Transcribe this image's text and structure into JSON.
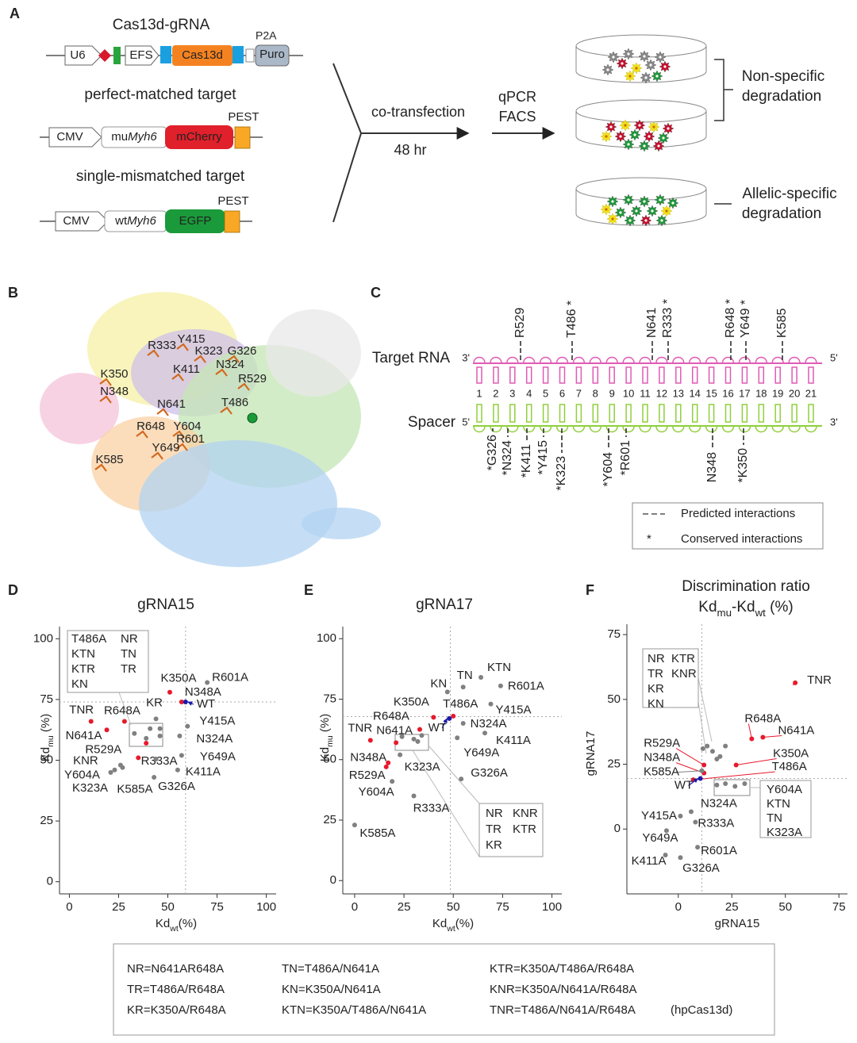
{
  "panel_a": {
    "letter": "A",
    "constructs": [
      {
        "title": "Cas13d-gRNA",
        "promoter": "U6",
        "promoter2": "EFS",
        "gene": "Cas13d",
        "linker": "P2A",
        "marker": "Puro"
      },
      {
        "title": "perfect-matched target",
        "promoter": "CMV",
        "target_prefix": "mu",
        "target_gene": "Myh6",
        "reporter": "mCherry",
        "tag": "PEST"
      },
      {
        "title": "single-mismatched target",
        "promoter": "CMV",
        "target_prefix": "wt",
        "target_gene": "Myh6",
        "reporter": "EGFP",
        "tag": "PEST"
      }
    ],
    "step": "co-transfection",
    "step_time": "48 hr",
    "assay": [
      "qPCR",
      "FACS"
    ],
    "outcome1": [
      "Non-specific",
      "degradation"
    ],
    "outcome2": [
      "Allelic-specific",
      "degradation"
    ]
  },
  "panel_b": {
    "letter": "B",
    "residues": [
      "Y415",
      "R333",
      "K323",
      "G326",
      "K411",
      "N324",
      "K350",
      "R529",
      "N348",
      "N641",
      "T486",
      "R648",
      "Y604",
      "R601",
      "Y649",
      "K585"
    ]
  },
  "panel_c": {
    "letter": "C",
    "target_label": "Target RNA",
    "target_ends": [
      "3'",
      "5'"
    ],
    "spacer_label": "Spacer",
    "spacer_ends": [
      "5'",
      "3'"
    ],
    "positions": [
      1,
      2,
      3,
      4,
      5,
      6,
      7,
      8,
      9,
      10,
      11,
      12,
      13,
      14,
      15,
      16,
      17,
      18,
      19,
      20,
      21
    ],
    "top_residues": [
      "R529",
      "T486 *",
      "N641",
      "R333 *",
      "R648 *",
      "Y649 *",
      "K585"
    ],
    "bottom_residues": [
      "*G326",
      "*N324",
      "*K411",
      "*Y415",
      "*K323",
      "*Y604",
      "*R601",
      "N348",
      "*K350"
    ],
    "legend": {
      "dash_label": "Predicted  interactions",
      "star": "*",
      "star_label": "Conserved interactions"
    }
  },
  "chart_data": [
    {
      "type": "scatter",
      "panel": "D",
      "title": "gRNA15",
      "xlabel": [
        {
          "text": "Kd"
        },
        {
          "text": "wt",
          "sub": true
        },
        {
          "text": "(%)"
        }
      ],
      "ylabel": [
        {
          "text": "Kd"
        },
        {
          "text": "mu",
          "sub": true
        },
        {
          "text": " (%)"
        }
      ],
      "xlim": [
        -5,
        105
      ],
      "ylim": [
        -5,
        105
      ],
      "xticks": [
        0,
        25,
        50,
        75,
        100
      ],
      "yticks": [
        0,
        25,
        50,
        75,
        100
      ],
      "vline": 59,
      "hline": 74,
      "points": [
        {
          "label": "K350A",
          "x": 51,
          "y": 78,
          "color": "#e8192c"
        },
        {
          "label": "N348A",
          "x": 57,
          "y": 74,
          "color": "#e8192c"
        },
        {
          "label": "WT",
          "x": 59,
          "y": 74,
          "color": "#1a1aa8"
        },
        {
          "label": "R601A",
          "x": 70,
          "y": 82,
          "color": "#808080"
        },
        {
          "label": "TNR",
          "x": 11,
          "y": 66,
          "color": "#e8192c"
        },
        {
          "label": "R648A",
          "x": 28,
          "y": 66,
          "color": "#e8192c"
        },
        {
          "label": "KR",
          "x": 44,
          "y": 67,
          "color": "#808080"
        },
        {
          "label": "N641A",
          "x": 19,
          "y": 62.5,
          "color": "#e8192c"
        },
        {
          "label": "Y415A",
          "x": 60,
          "y": 64,
          "color": "#808080"
        },
        {
          "label": "N324A",
          "x": 56,
          "y": 60,
          "color": "#808080"
        },
        {
          "label": "R529A",
          "x": 35,
          "y": 51,
          "color": "#e8192c"
        },
        {
          "label": "R333A",
          "x": 44,
          "y": 50.5,
          "color": "#808080"
        },
        {
          "label": "Y649A",
          "x": 57,
          "y": 52,
          "color": "#808080"
        },
        {
          "label": "K411A",
          "x": 55,
          "y": 46,
          "color": "#808080"
        },
        {
          "label": "G326A",
          "x": 43,
          "y": 43,
          "color": "#808080"
        },
        {
          "label": "K585A",
          "x": 27,
          "y": 47,
          "color": "#808080"
        },
        {
          "label": "KNR",
          "x": 26,
          "y": 48,
          "color": "#808080"
        },
        {
          "label": "Y604A",
          "x": 23,
          "y": 46,
          "color": "#808080"
        },
        {
          "label": "K323A",
          "x": 21,
          "y": 45,
          "color": "#808080"
        },
        {
          "x": 39,
          "y": 57,
          "color": "#e8192c"
        },
        {
          "x": 33,
          "y": 61,
          "color": "#808080"
        },
        {
          "x": 41,
          "y": 63,
          "color": "#808080"
        },
        {
          "x": 46,
          "y": 63,
          "color": "#808080"
        },
        {
          "x": 39,
          "y": 59,
          "color": "#808080"
        },
        {
          "x": 46,
          "y": 60,
          "color": "#808080"
        }
      ],
      "insets": [
        [
          [
            {
              "text": "T486A",
              "color": "#e8192c"
            },
            "NR"
          ],
          [
            "KTN",
            "TN"
          ],
          [
            "KTR",
            "TR"
          ],
          [
            "KN"
          ]
        ]
      ]
    },
    {
      "type": "scatter",
      "panel": "E",
      "title": "gRNA17",
      "xlabel": [
        {
          "text": "Kd"
        },
        {
          "text": "wt",
          "sub": true
        },
        {
          "text": "(%)"
        }
      ],
      "ylabel": [
        {
          "text": "Kd"
        },
        {
          "text": "mu",
          "sub": true
        },
        {
          "text": " (%)"
        }
      ],
      "xlim": [
        -6,
        105
      ],
      "ylim": [
        -5.5,
        105
      ],
      "xticks": [
        0,
        25,
        50,
        75,
        100
      ],
      "yticks": [
        0,
        25,
        50,
        75,
        100
      ],
      "vline": 48.5,
      "hline": 67.8,
      "points": [
        {
          "label": "KN",
          "x": 47,
          "y": 78,
          "color": "#808080"
        },
        {
          "label": "TN",
          "x": 55,
          "y": 80,
          "color": "#808080"
        },
        {
          "label": "KTN",
          "x": 64,
          "y": 84,
          "color": "#808080"
        },
        {
          "label": "R601A",
          "x": 74,
          "y": 80.5,
          "color": "#808080"
        },
        {
          "label": "Y415A",
          "x": 69,
          "y": 73,
          "color": "#808080"
        },
        {
          "label": "K350A",
          "x": 40,
          "y": 67.5,
          "color": "#e8192c"
        },
        {
          "label": "T486A",
          "x": 50,
          "y": 68,
          "color": "#e8192c"
        },
        {
          "label": "WT",
          "x": 48,
          "y": 67,
          "color": "#1a1aa8"
        },
        {
          "label": "N324A",
          "x": 55,
          "y": 65,
          "color": "#808080"
        },
        {
          "label": "K411A",
          "x": 66,
          "y": 61,
          "color": "#808080"
        },
        {
          "label": "Y649A",
          "x": 52,
          "y": 59,
          "color": "#808080"
        },
        {
          "label": "R648A",
          "x": 33,
          "y": 62.5,
          "color": "#e8192c"
        },
        {
          "label": "TNR",
          "x": 8,
          "y": 58,
          "color": "#e8192c"
        },
        {
          "label": "N641A",
          "x": 21,
          "y": 57,
          "color": "#e8192c"
        },
        {
          "label": "N348A",
          "x": 17,
          "y": 48.7,
          "color": "#e8192c"
        },
        {
          "label": "R529A",
          "x": 16,
          "y": 47,
          "color": "#e8192c"
        },
        {
          "label": "K323A",
          "x": 23,
          "y": 52,
          "color": "#808080"
        },
        {
          "label": "Y604A",
          "x": 19,
          "y": 41,
          "color": "#808080"
        },
        {
          "label": "G326A",
          "x": 54,
          "y": 42,
          "color": "#808080"
        },
        {
          "label": "R333A",
          "x": 30,
          "y": 35,
          "color": "#808080"
        },
        {
          "label": "K585A",
          "x": 0,
          "y": 23,
          "color": "#808080"
        },
        {
          "x": 24,
          "y": 59.5,
          "color": "#808080"
        },
        {
          "x": 30,
          "y": 58.5,
          "color": "#808080"
        },
        {
          "x": 34,
          "y": 60,
          "color": "#808080"
        },
        {
          "x": 32,
          "y": 57.5,
          "color": "#808080"
        }
      ],
      "insets": [
        [
          [
            "NR",
            "KNR"
          ],
          [
            "TR",
            "KTR"
          ],
          [
            "KR"
          ]
        ]
      ]
    },
    {
      "type": "scatter",
      "panel": "F",
      "title": "Discrimination ratio",
      "subtitle": [
        {
          "text": "Kd"
        },
        {
          "text": "mu",
          "sub": true
        },
        {
          "text": "-Kd"
        },
        {
          "text": "wt",
          "sub": true
        },
        {
          "text": " (%)"
        }
      ],
      "xlabel": [
        {
          "text": "gRNA15"
        }
      ],
      "ylabel": [
        {
          "text": "gRNA17"
        }
      ],
      "xlim": [
        -24,
        79
      ],
      "ylim": [
        -25,
        79
      ],
      "xticks": [
        0,
        25,
        50,
        75
      ],
      "yticks": [
        0,
        25,
        50,
        75
      ],
      "vline": 11,
      "hline": 19.5,
      "points": [
        {
          "label": "TNR",
          "x": 54.6,
          "y": 56.4,
          "color": "#e8192c"
        },
        {
          "label": "R648A",
          "x": 34.3,
          "y": 34.8,
          "color": "#e8192c"
        },
        {
          "label": "N641A",
          "x": 39.5,
          "y": 35.4,
          "color": "#e8192c"
        },
        {
          "label": "K350A",
          "x": 27,
          "y": 24.7,
          "color": "#e8192c"
        },
        {
          "label": "T486A",
          "x": 7,
          "y": 19,
          "color": "#e8192c"
        },
        {
          "label": "R529A",
          "x": 12,
          "y": 24.7,
          "color": "#e8192c"
        },
        {
          "label": "N348A",
          "x": 12,
          "y": 21.6,
          "color": "#e8192c"
        },
        {
          "label": "K585A",
          "x": 11,
          "y": 22.5,
          "color": "#808080"
        },
        {
          "label": "WT",
          "x": 10.3,
          "y": 19.5,
          "color": "#1a1aa8"
        },
        {
          "label": "N324A",
          "x": 6,
          "y": 6.7,
          "color": "#808080"
        },
        {
          "label": "R333A",
          "x": 8,
          "y": 2.7,
          "color": "#808080"
        },
        {
          "label": "Y415A",
          "x": 1,
          "y": 5,
          "color": "#808080"
        },
        {
          "label": "Y649A",
          "x": -5.5,
          "y": -0.6,
          "color": "#808080"
        },
        {
          "label": "R601A",
          "x": 9,
          "y": -7,
          "color": "#808080"
        },
        {
          "label": "K411A",
          "x": -6,
          "y": -10,
          "color": "#808080"
        },
        {
          "label": "G326A",
          "x": 1,
          "y": -11,
          "color": "#808080"
        },
        {
          "x": 18,
          "y": 17,
          "color": "#808080"
        },
        {
          "x": 22,
          "y": 17.5,
          "color": "#808080"
        },
        {
          "x": 26.5,
          "y": 16.5,
          "color": "#808080"
        },
        {
          "x": 31,
          "y": 17.5,
          "color": "#808080"
        },
        {
          "x": 11.5,
          "y": 31,
          "color": "#808080"
        },
        {
          "x": 13.5,
          "y": 32,
          "color": "#808080"
        },
        {
          "x": 19.5,
          "y": 28,
          "color": "#808080"
        },
        {
          "x": 16,
          "y": 30,
          "color": "#808080"
        },
        {
          "x": 18,
          "y": 27,
          "color": "#808080"
        },
        {
          "x": 22,
          "y": 32,
          "color": "#808080"
        }
      ],
      "insets": [
        [
          [
            "NR",
            "KTR"
          ],
          [
            "TR",
            "KNR"
          ],
          [
            "KR"
          ],
          [
            "KN"
          ]
        ],
        [
          [
            "Y604A"
          ],
          [
            "KTN"
          ],
          [
            "TN"
          ],
          [
            "K323A"
          ]
        ]
      ]
    }
  ],
  "abbreviations": {
    "columns": [
      [
        "NR=N641AR648A",
        "TR=T486A/R648A",
        "KR=K350A/R648A"
      ],
      [
        "TN=T486A/N641A",
        "KN=K350A/N641A",
        "KTN=K350A/T486A/N641A"
      ],
      [
        "KTR=K350A/T486A/R648A",
        "KNR=K350A/N641A/R648A",
        "TNR=T486A/N641A/R648A"
      ]
    ],
    "note": "(hpCas13d)"
  }
}
